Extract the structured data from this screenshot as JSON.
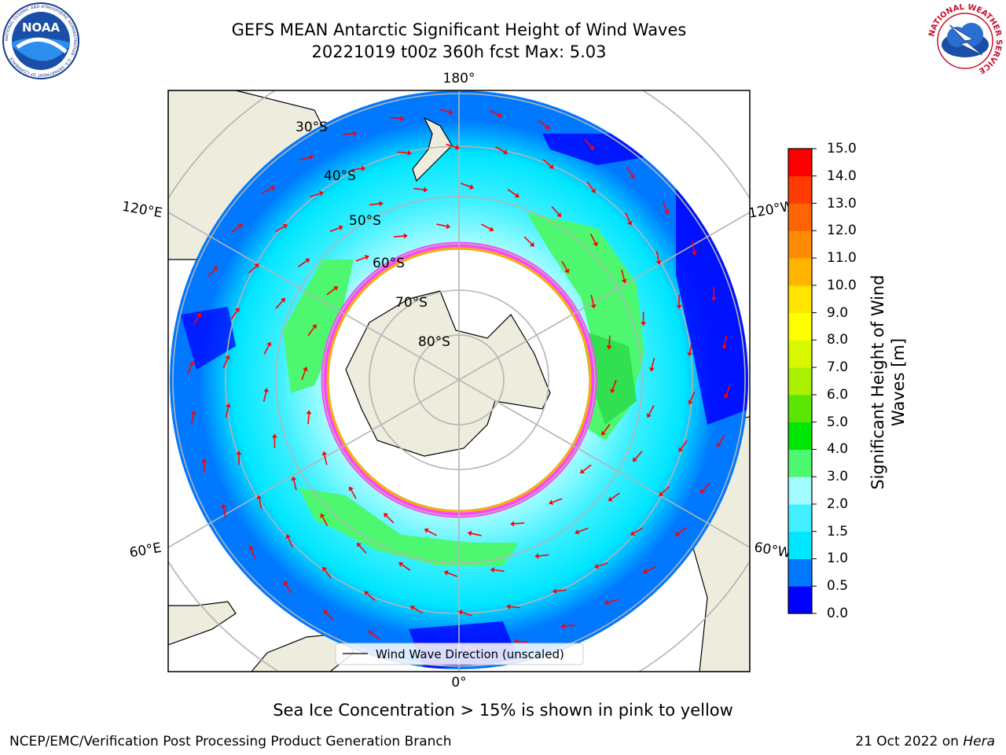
{
  "header": {
    "title_line1": "GEFS MEAN Antarctic Significant Height of Wind Waves",
    "title_line2": "20221019 t00z 360h fcst   Max: 5.03"
  },
  "logos": {
    "left": {
      "icon": "noaa-logo-icon",
      "text": "NOAA",
      "ring_text": "NATIONAL OCEANIC AND ATMOSPHERIC ADMINISTRATION · U.S. DEPARTMENT OF COMMERCE"
    },
    "right": {
      "icon": "national-weather-service-logo-icon",
      "ring_text": "NATIONAL WEATHER SERVICE"
    }
  },
  "map": {
    "projection": "south-polar-stereographic",
    "longitude_labels": {
      "top": "180°",
      "bottom": "0°",
      "left_upper": "120°E",
      "left_lower": "60°E",
      "right_upper": "120°W",
      "right_lower": "60°W"
    },
    "latitude_labels": [
      "30°S",
      "40°S",
      "50°S",
      "60°S",
      "70°S",
      "80°S"
    ],
    "legend": {
      "label": "Wind Wave Direction (unscaled)"
    },
    "colors": {
      "land": "#eeecdc",
      "ice_shelf": "#ffffff",
      "grid": "#b4b4b4",
      "arrow": "#ff0000",
      "sea_ice_edge": [
        "#ff44ff",
        "#ffaa00"
      ]
    }
  },
  "colorbar": {
    "label": "Significant Height of Wind Waves [m]",
    "tick_labels": [
      "0.0",
      "0.5",
      "1.0",
      "1.5",
      "2.0",
      "3.0",
      "4.0",
      "5.0",
      "6.0",
      "7.0",
      "8.0",
      "9.0",
      "10.0",
      "11.0",
      "12.0",
      "13.0",
      "14.0",
      "15.0"
    ],
    "colors": [
      "#0000ff",
      "#0078ff",
      "#00e6ff",
      "#40f0ff",
      "#a0fcff",
      "#4df870",
      "#00e600",
      "#5ae600",
      "#aaf000",
      "#d8f800",
      "#ffff00",
      "#ffe400",
      "#ffb400",
      "#ff8c00",
      "#ff6400",
      "#ff3c00",
      "#ff0000"
    ]
  },
  "caption": "Sea Ice Concentration > 15% is shown in pink to yellow",
  "footer": {
    "credit": "NCEP/EMC/Verification Post Processing Product Generation Branch",
    "date": "21 Oct 2022 on ",
    "machine": "Hera"
  }
}
